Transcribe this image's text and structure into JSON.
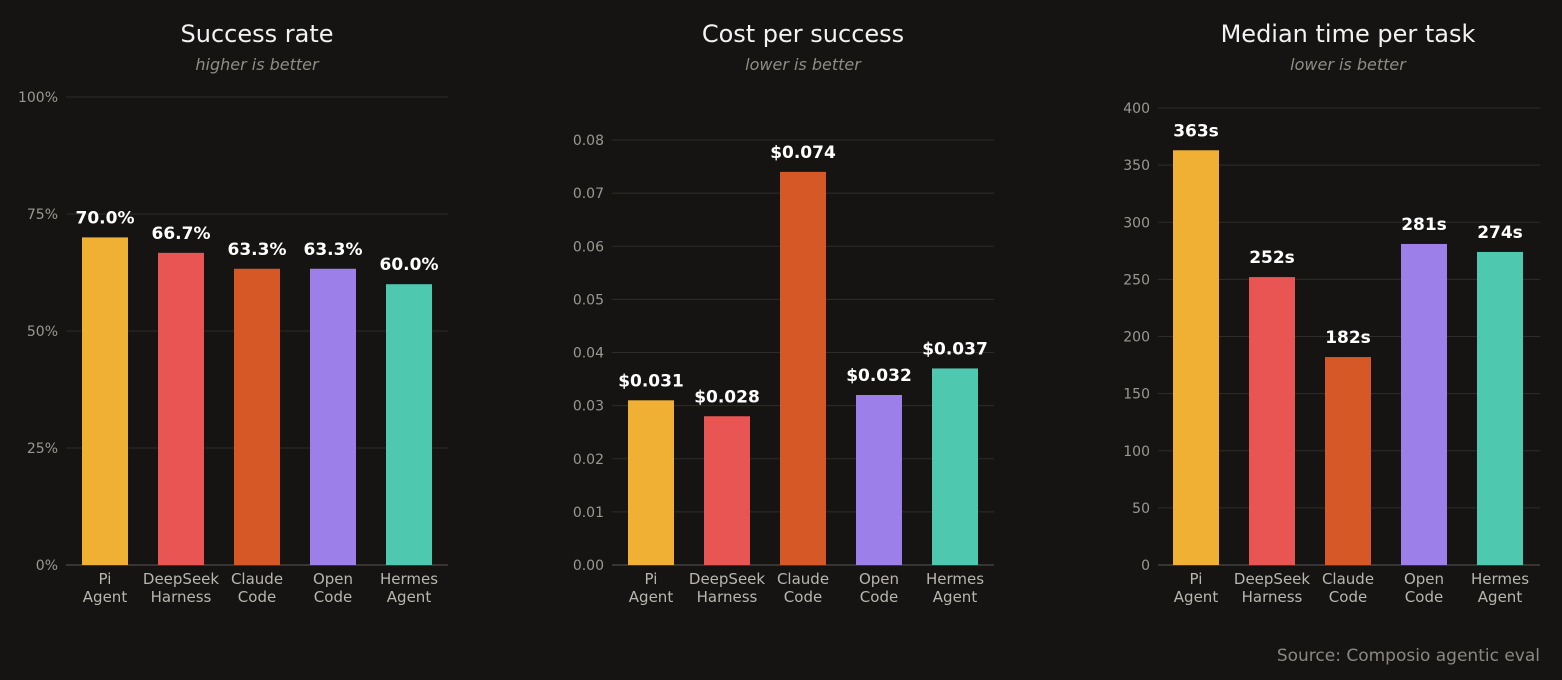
{
  "source": "Source: Composio agentic eval",
  "chart_data": [
    {
      "type": "bar",
      "title": "Success rate",
      "subtitle": "higher is better",
      "categories": [
        [
          "Pi",
          "Agent"
        ],
        [
          "DeepSeek",
          "Harness"
        ],
        [
          "Claude",
          "Code"
        ],
        [
          "Open",
          "Code"
        ],
        [
          "Hermes",
          "Agent"
        ]
      ],
      "values": [
        70.0,
        66.7,
        63.3,
        63.3,
        60.0
      ],
      "value_labels": [
        "70.0%",
        "66.7%",
        "63.3%",
        "63.3%",
        "60.0%"
      ],
      "colors": [
        "#f0b034",
        "#e85552",
        "#d65826",
        "#9c7fe9",
        "#4fc8b0"
      ],
      "ylim": [
        0,
        100
      ],
      "yticks": [
        0,
        25,
        50,
        75,
        100
      ],
      "ytick_labels": [
        "0%",
        "25%",
        "50%",
        "75%",
        "100%"
      ],
      "grid": true
    },
    {
      "type": "bar",
      "title": "Cost per success",
      "subtitle": "lower is better",
      "categories": [
        [
          "Pi",
          "Agent"
        ],
        [
          "DeepSeek",
          "Harness"
        ],
        [
          "Claude",
          "Code"
        ],
        [
          "Open",
          "Code"
        ],
        [
          "Hermes",
          "Agent"
        ]
      ],
      "values": [
        0.031,
        0.028,
        0.074,
        0.032,
        0.037
      ],
      "value_labels": [
        "$0.031",
        "$0.028",
        "$0.074",
        "$0.032",
        "$0.037"
      ],
      "colors": [
        "#f0b034",
        "#e85552",
        "#d65826",
        "#9c7fe9",
        "#4fc8b0"
      ],
      "ylim": [
        0,
        0.08
      ],
      "yticks": [
        0,
        0.01,
        0.02,
        0.03,
        0.04,
        0.05,
        0.06,
        0.07,
        0.08
      ],
      "ytick_labels": [
        "0.00",
        "0.01",
        "0.02",
        "0.03",
        "0.04",
        "0.05",
        "0.06",
        "0.07",
        "0.08"
      ],
      "grid": true
    },
    {
      "type": "bar",
      "title": "Median time per task",
      "subtitle": "lower is better",
      "categories": [
        [
          "Pi",
          "Agent"
        ],
        [
          "DeepSeek",
          "Harness"
        ],
        [
          "Claude",
          "Code"
        ],
        [
          "Open",
          "Code"
        ],
        [
          "Hermes",
          "Agent"
        ]
      ],
      "values": [
        363,
        252,
        182,
        281,
        274
      ],
      "value_labels": [
        "363s",
        "252s",
        "182s",
        "281s",
        "274s"
      ],
      "colors": [
        "#f0b034",
        "#e85552",
        "#d65826",
        "#9c7fe9",
        "#4fc8b0"
      ],
      "ylim": [
        0,
        400
      ],
      "yticks": [
        0,
        50,
        100,
        150,
        200,
        250,
        300,
        350,
        400
      ],
      "ytick_labels": [
        "0",
        "50",
        "100",
        "150",
        "200",
        "250",
        "300",
        "350",
        "400"
      ],
      "grid": true
    }
  ]
}
